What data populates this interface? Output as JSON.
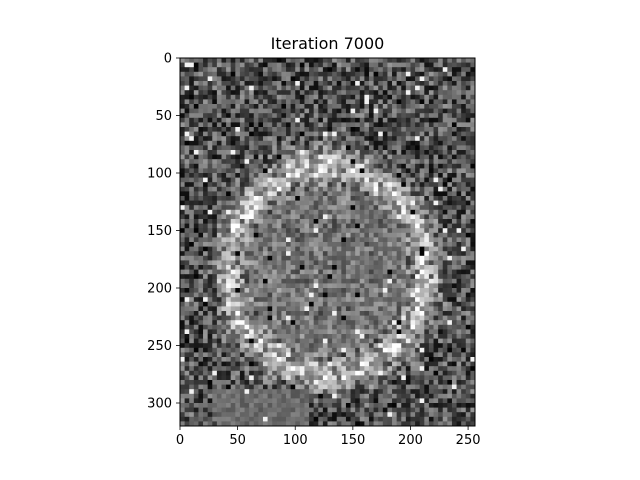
{
  "chart_data": {
    "type": "heatmap",
    "title": "Iteration 7000",
    "xlabel": "",
    "ylabel": "",
    "colormap": "gray",
    "image_width": 256,
    "image_height": 320,
    "xlim": [
      0,
      256
    ],
    "ylim": [
      320,
      0
    ],
    "x_ticks": [
      0,
      50,
      100,
      150,
      200,
      250
    ],
    "y_ticks": [
      0,
      50,
      100,
      150,
      200,
      250,
      300
    ],
    "grid": false,
    "legend": "none",
    "content": "noisy grayscale reconstruction with a brighter ring-like oval structure in the center"
  }
}
